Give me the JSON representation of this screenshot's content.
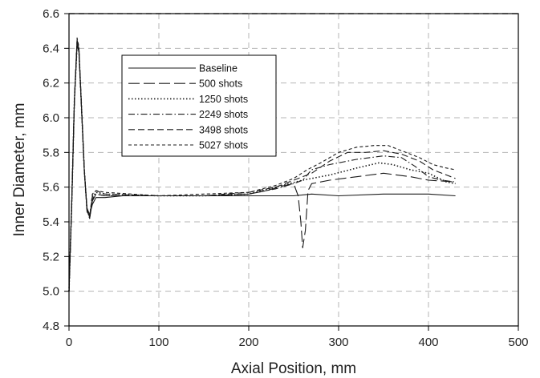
{
  "chart_data": {
    "type": "line",
    "title": "",
    "xlabel": "Axial Position, mm",
    "ylabel": "Inner Diameter, mm",
    "xlim": [
      0,
      500
    ],
    "ylim": [
      4.8,
      6.6
    ],
    "xticks": [
      "0",
      "100",
      "200",
      "300",
      "400",
      "500"
    ],
    "yticks": [
      "4.8",
      "5.0",
      "5.2",
      "5.4",
      "5.6",
      "5.8",
      "6.0",
      "6.2",
      "6.4",
      "6.6"
    ],
    "grid": "dashed",
    "legend_position": "top-left",
    "series": [
      {
        "name": "Baseline",
        "dash": "solid",
        "points": [
          [
            0,
            5.0
          ],
          [
            3,
            5.5
          ],
          [
            6,
            6.1
          ],
          [
            9,
            6.42
          ],
          [
            11,
            6.38
          ],
          [
            14,
            6.05
          ],
          [
            17,
            5.7
          ],
          [
            20,
            5.48
          ],
          [
            23,
            5.44
          ],
          [
            26,
            5.5
          ],
          [
            30,
            5.54
          ],
          [
            40,
            5.54
          ],
          [
            60,
            5.55
          ],
          [
            100,
            5.55
          ],
          [
            150,
            5.55
          ],
          [
            200,
            5.55
          ],
          [
            220,
            5.55
          ],
          [
            250,
            5.55
          ],
          [
            270,
            5.56
          ],
          [
            300,
            5.55
          ],
          [
            350,
            5.56
          ],
          [
            400,
            5.56
          ],
          [
            430,
            5.55
          ]
        ]
      },
      {
        "name": "500 shots",
        "dash": "long-dash",
        "points": [
          [
            0,
            5.0
          ],
          [
            3,
            5.5
          ],
          [
            6,
            6.1
          ],
          [
            9,
            6.44
          ],
          [
            11,
            6.4
          ],
          [
            14,
            6.05
          ],
          [
            17,
            5.7
          ],
          [
            20,
            5.46
          ],
          [
            23,
            5.42
          ],
          [
            26,
            5.52
          ],
          [
            30,
            5.56
          ],
          [
            40,
            5.55
          ],
          [
            100,
            5.55
          ],
          [
            150,
            5.55
          ],
          [
            200,
            5.56
          ],
          [
            220,
            5.58
          ],
          [
            240,
            5.61
          ],
          [
            250,
            5.62
          ],
          [
            255,
            5.55
          ],
          [
            258,
            5.4
          ],
          [
            260,
            5.25
          ],
          [
            263,
            5.35
          ],
          [
            266,
            5.58
          ],
          [
            270,
            5.62
          ],
          [
            290,
            5.64
          ],
          [
            320,
            5.66
          ],
          [
            350,
            5.68
          ],
          [
            380,
            5.66
          ],
          [
            400,
            5.64
          ],
          [
            430,
            5.63
          ]
        ]
      },
      {
        "name": "1250 shots",
        "dash": "dotted",
        "points": [
          [
            0,
            5.0
          ],
          [
            3,
            5.5
          ],
          [
            6,
            6.1
          ],
          [
            9,
            6.42
          ],
          [
            11,
            6.39
          ],
          [
            14,
            6.05
          ],
          [
            17,
            5.7
          ],
          [
            20,
            5.47
          ],
          [
            23,
            5.43
          ],
          [
            26,
            5.54
          ],
          [
            30,
            5.57
          ],
          [
            40,
            5.56
          ],
          [
            100,
            5.55
          ],
          [
            150,
            5.55
          ],
          [
            200,
            5.56
          ],
          [
            230,
            5.6
          ],
          [
            260,
            5.64
          ],
          [
            290,
            5.67
          ],
          [
            320,
            5.71
          ],
          [
            345,
            5.74
          ],
          [
            360,
            5.73
          ],
          [
            380,
            5.7
          ],
          [
            400,
            5.68
          ],
          [
            420,
            5.63
          ],
          [
            430,
            5.62
          ]
        ]
      },
      {
        "name": "2249 shots",
        "dash": "dash-dot",
        "points": [
          [
            0,
            5.0
          ],
          [
            3,
            5.5
          ],
          [
            6,
            6.1
          ],
          [
            9,
            6.45
          ],
          [
            11,
            6.4
          ],
          [
            14,
            6.05
          ],
          [
            17,
            5.7
          ],
          [
            20,
            5.47
          ],
          [
            23,
            5.42
          ],
          [
            26,
            5.53
          ],
          [
            30,
            5.56
          ],
          [
            40,
            5.55
          ],
          [
            100,
            5.55
          ],
          [
            150,
            5.55
          ],
          [
            200,
            5.56
          ],
          [
            230,
            5.59
          ],
          [
            250,
            5.62
          ],
          [
            260,
            5.64
          ],
          [
            270,
            5.7
          ],
          [
            290,
            5.73
          ],
          [
            320,
            5.76
          ],
          [
            350,
            5.78
          ],
          [
            370,
            5.77
          ],
          [
            385,
            5.72
          ],
          [
            400,
            5.66
          ],
          [
            415,
            5.64
          ],
          [
            430,
            5.63
          ]
        ]
      },
      {
        "name": "3498 shots",
        "dash": "dash",
        "points": [
          [
            0,
            5.0
          ],
          [
            3,
            5.5
          ],
          [
            6,
            6.1
          ],
          [
            9,
            6.43
          ],
          [
            11,
            6.4
          ],
          [
            14,
            6.05
          ],
          [
            17,
            5.7
          ],
          [
            20,
            5.47
          ],
          [
            23,
            5.42
          ],
          [
            26,
            5.55
          ],
          [
            30,
            5.58
          ],
          [
            40,
            5.56
          ],
          [
            100,
            5.55
          ],
          [
            150,
            5.55
          ],
          [
            200,
            5.57
          ],
          [
            230,
            5.6
          ],
          [
            250,
            5.64
          ],
          [
            270,
            5.68
          ],
          [
            290,
            5.75
          ],
          [
            310,
            5.8
          ],
          [
            330,
            5.8
          ],
          [
            350,
            5.81
          ],
          [
            370,
            5.79
          ],
          [
            390,
            5.75
          ],
          [
            405,
            5.7
          ],
          [
            420,
            5.67
          ],
          [
            430,
            5.65
          ]
        ]
      },
      {
        "name": "5027 shots",
        "dash": "short-dash",
        "points": [
          [
            0,
            5.0
          ],
          [
            3,
            5.5
          ],
          [
            6,
            6.1
          ],
          [
            9,
            6.46
          ],
          [
            11,
            6.41
          ],
          [
            14,
            6.05
          ],
          [
            17,
            5.7
          ],
          [
            20,
            5.47
          ],
          [
            23,
            5.43
          ],
          [
            26,
            5.56
          ],
          [
            30,
            5.58
          ],
          [
            40,
            5.57
          ],
          [
            100,
            5.55
          ],
          [
            150,
            5.56
          ],
          [
            200,
            5.57
          ],
          [
            230,
            5.61
          ],
          [
            250,
            5.65
          ],
          [
            265,
            5.7
          ],
          [
            280,
            5.74
          ],
          [
            300,
            5.8
          ],
          [
            320,
            5.83
          ],
          [
            340,
            5.84
          ],
          [
            355,
            5.84
          ],
          [
            370,
            5.81
          ],
          [
            390,
            5.77
          ],
          [
            405,
            5.73
          ],
          [
            420,
            5.71
          ],
          [
            430,
            5.7
          ]
        ]
      }
    ]
  }
}
